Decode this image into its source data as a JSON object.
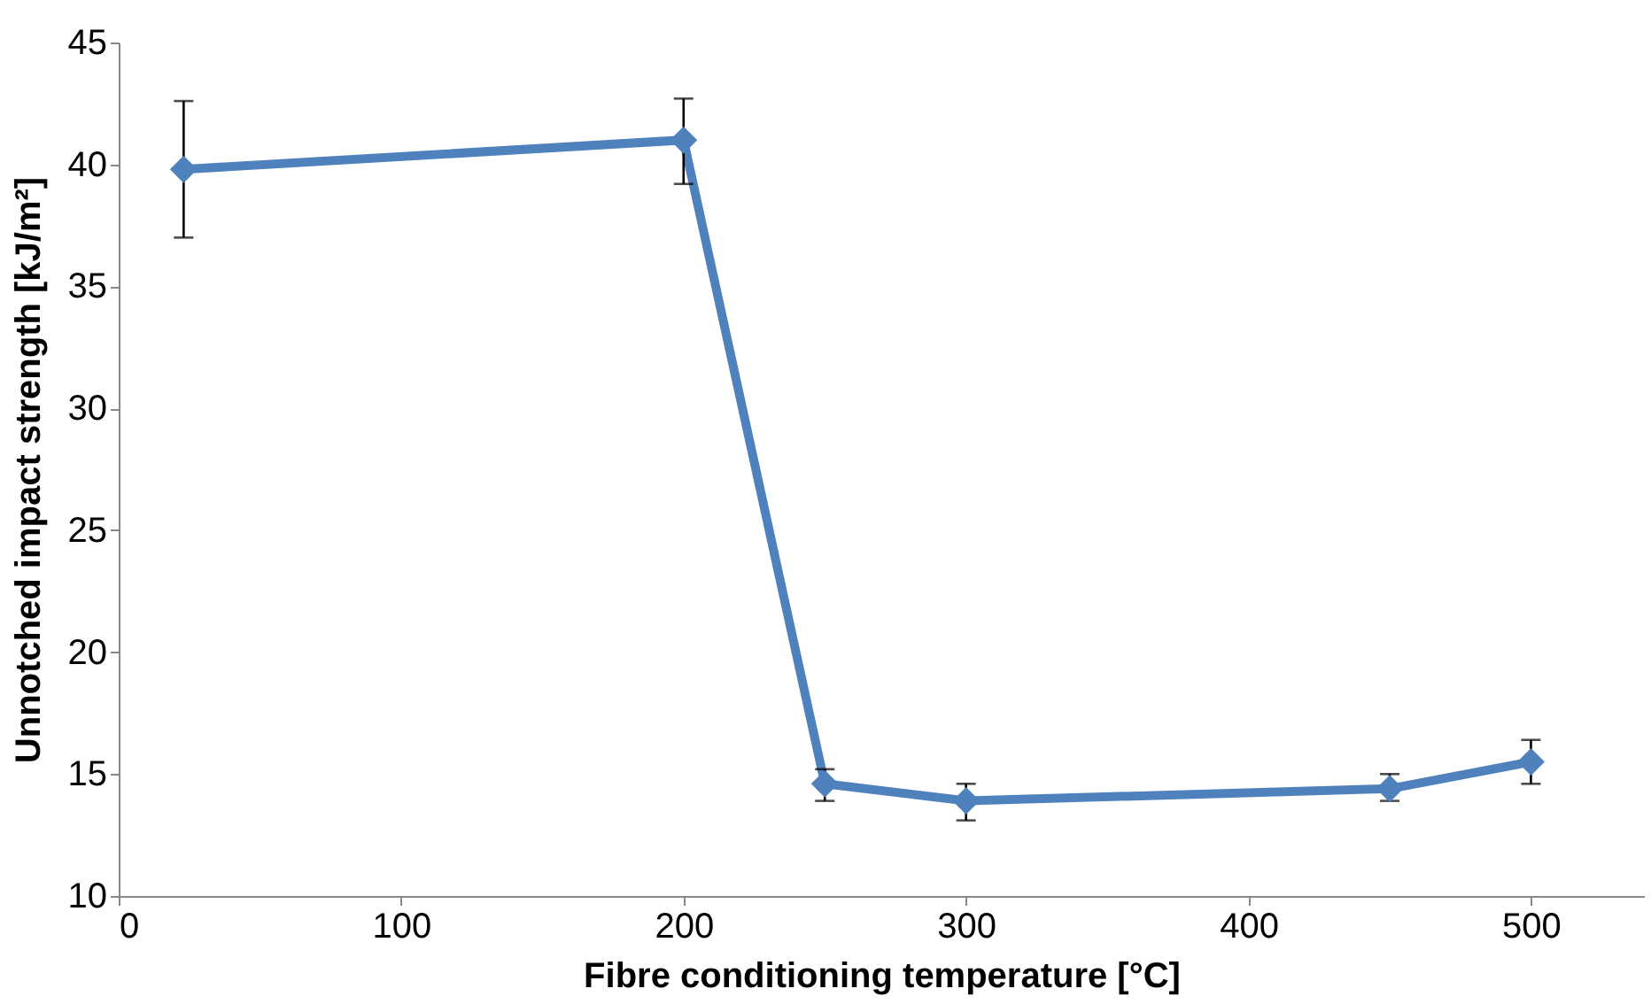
{
  "chart_data": {
    "type": "line",
    "xlabel": "Fibre conditioning temperature [°C]",
    "ylabel": "Unnotched impact strength [kJ/m²]",
    "x": [
      23,
      200,
      250,
      300,
      450,
      500
    ],
    "series": [
      {
        "color": "#4f81bd",
        "values": [
          39.8,
          41.0,
          14.6,
          13.9,
          14.4,
          15.5
        ],
        "errors": [
          [
            37.0,
            42.6
          ],
          [
            39.2,
            42.7
          ],
          [
            13.9,
            15.2
          ],
          [
            13.1,
            14.6
          ],
          [
            13.9,
            15.0
          ],
          [
            14.6,
            16.4
          ]
        ]
      }
    ],
    "xlim": [
      0,
      540
    ],
    "xticks": [
      0,
      100,
      200,
      300,
      400,
      500
    ],
    "ylim": [
      10,
      45
    ],
    "yticks": [
      10,
      15,
      20,
      25,
      30,
      35,
      40,
      45
    ],
    "grid": false,
    "marker": "diamond",
    "line_style": "solid"
  }
}
